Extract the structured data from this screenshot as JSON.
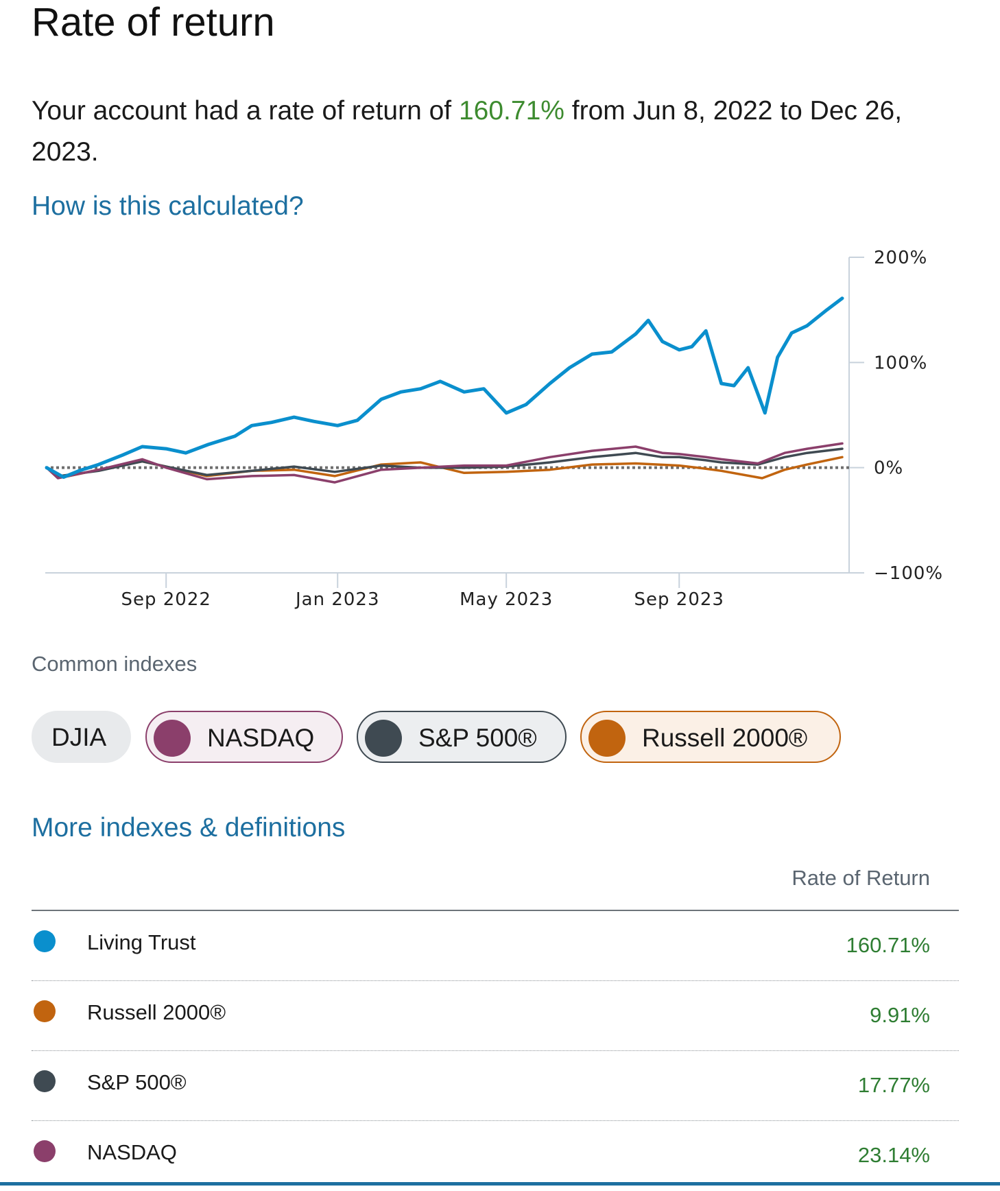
{
  "page": {
    "title": "Rate of return",
    "summary_prefix": "Your account had a rate of return of ",
    "summary_value": "160.71%",
    "summary_suffix": " from Jun 8, 2022 to Dec 26, 2023.",
    "how_link": "How is this calculated?"
  },
  "indexes": {
    "label": "Common indexes",
    "chips": [
      {
        "label": "DJIA",
        "selected": false,
        "color": null
      },
      {
        "label": "NASDAQ",
        "selected": true,
        "color": "#8b3f6b"
      },
      {
        "label": "S&P 500®",
        "selected": true,
        "color": "#3f4a52"
      },
      {
        "label": "Russell 2000®",
        "selected": true,
        "color": "#c1640f"
      }
    ],
    "more_link": "More indexes & definitions"
  },
  "table": {
    "header": "Rate of Return",
    "rows": [
      {
        "name": "Living Trust",
        "value": "160.71%",
        "color": "#0a8fcd"
      },
      {
        "name": "Russell 2000®",
        "value": "9.91%",
        "color": "#c1640f"
      },
      {
        "name": "S&P 500®",
        "value": "17.77%",
        "color": "#3f4a52"
      },
      {
        "name": "NASDAQ",
        "value": "23.14%",
        "color": "#8b3f6b"
      }
    ]
  },
  "chart_data": {
    "type": "line",
    "title": "",
    "xlabel": "",
    "ylabel": "",
    "x_start": "2022-06-08",
    "x_end": "2023-12-26",
    "x_ticks": [
      {
        "label": "Sep 2022",
        "date": "2022-09-01"
      },
      {
        "label": "Jan 2023",
        "date": "2023-01-01"
      },
      {
        "label": "May 2023",
        "date": "2023-05-01"
      },
      {
        "label": "Sep 2023",
        "date": "2023-09-01"
      }
    ],
    "y_ticks": [
      {
        "label": "200%",
        "value": 200
      },
      {
        "label": "100%",
        "value": 100
      },
      {
        "label": "0%",
        "value": 0
      },
      {
        "label": "−100%",
        "value": -100
      }
    ],
    "ylim": [
      -100,
      200
    ],
    "baseline": 0,
    "series": [
      {
        "name": "Living Trust",
        "color": "#0a8fcd",
        "points": [
          [
            "2022-06-08",
            0
          ],
          [
            "2022-06-20",
            -9
          ],
          [
            "2022-07-01",
            -3
          ],
          [
            "2022-07-15",
            3
          ],
          [
            "2022-08-01",
            12
          ],
          [
            "2022-08-15",
            20
          ],
          [
            "2022-09-01",
            18
          ],
          [
            "2022-09-15",
            14
          ],
          [
            "2022-10-01",
            22
          ],
          [
            "2022-10-20",
            30
          ],
          [
            "2022-11-01",
            40
          ],
          [
            "2022-11-15",
            43
          ],
          [
            "2022-12-01",
            48
          ],
          [
            "2022-12-15",
            44
          ],
          [
            "2023-01-01",
            40
          ],
          [
            "2023-01-15",
            45
          ],
          [
            "2023-02-01",
            65
          ],
          [
            "2023-02-15",
            72
          ],
          [
            "2023-03-01",
            75
          ],
          [
            "2023-03-15",
            82
          ],
          [
            "2023-04-01",
            72
          ],
          [
            "2023-04-15",
            75
          ],
          [
            "2023-05-01",
            52
          ],
          [
            "2023-05-15",
            60
          ],
          [
            "2023-06-01",
            80
          ],
          [
            "2023-06-15",
            95
          ],
          [
            "2023-07-01",
            108
          ],
          [
            "2023-07-15",
            110
          ],
          [
            "2023-08-01",
            127
          ],
          [
            "2023-08-10",
            140
          ],
          [
            "2023-08-20",
            120
          ],
          [
            "2023-09-01",
            112
          ],
          [
            "2023-09-10",
            115
          ],
          [
            "2023-09-20",
            130
          ],
          [
            "2023-10-01",
            80
          ],
          [
            "2023-10-10",
            78
          ],
          [
            "2023-10-20",
            95
          ],
          [
            "2023-11-01",
            52
          ],
          [
            "2023-11-10",
            105
          ],
          [
            "2023-11-20",
            128
          ],
          [
            "2023-12-01",
            135
          ],
          [
            "2023-12-15",
            150
          ],
          [
            "2023-12-26",
            161
          ]
        ]
      },
      {
        "name": "Russell 2000®",
        "color": "#c1640f",
        "points": [
          [
            "2022-06-08",
            0
          ],
          [
            "2022-06-20",
            -9
          ],
          [
            "2022-07-15",
            -2
          ],
          [
            "2022-08-15",
            6
          ],
          [
            "2022-09-01",
            1
          ],
          [
            "2022-09-30",
            -8
          ],
          [
            "2022-11-01",
            -3
          ],
          [
            "2022-12-01",
            -2
          ],
          [
            "2022-12-30",
            -8
          ],
          [
            "2023-02-01",
            3
          ],
          [
            "2023-03-01",
            5
          ],
          [
            "2023-04-01",
            -5
          ],
          [
            "2023-05-01",
            -4
          ],
          [
            "2023-06-01",
            -2
          ],
          [
            "2023-07-01",
            3
          ],
          [
            "2023-08-01",
            4
          ],
          [
            "2023-09-01",
            2
          ],
          [
            "2023-09-20",
            -1
          ],
          [
            "2023-10-01",
            -3
          ],
          [
            "2023-10-30",
            -10
          ],
          [
            "2023-11-15",
            -2
          ],
          [
            "2023-12-01",
            3
          ],
          [
            "2023-12-26",
            10
          ]
        ]
      },
      {
        "name": "S&P 500®",
        "color": "#3f4a52",
        "points": [
          [
            "2022-06-08",
            0
          ],
          [
            "2022-06-17",
            -8
          ],
          [
            "2022-07-15",
            -3
          ],
          [
            "2022-08-15",
            6
          ],
          [
            "2022-09-01",
            1
          ],
          [
            "2022-09-30",
            -7
          ],
          [
            "2022-11-01",
            -3
          ],
          [
            "2022-12-01",
            1
          ],
          [
            "2022-12-30",
            -4
          ],
          [
            "2023-02-01",
            2
          ],
          [
            "2023-03-01",
            0
          ],
          [
            "2023-04-01",
            0
          ],
          [
            "2023-05-01",
            1
          ],
          [
            "2023-06-01",
            5
          ],
          [
            "2023-07-01",
            10
          ],
          [
            "2023-08-01",
            14
          ],
          [
            "2023-08-20",
            10
          ],
          [
            "2023-09-01",
            10
          ],
          [
            "2023-09-20",
            7
          ],
          [
            "2023-10-01",
            5
          ],
          [
            "2023-10-27",
            3
          ],
          [
            "2023-11-15",
            10
          ],
          [
            "2023-12-01",
            14
          ],
          [
            "2023-12-26",
            18
          ]
        ]
      },
      {
        "name": "NASDAQ",
        "color": "#8b3f6b",
        "points": [
          [
            "2022-06-08",
            0
          ],
          [
            "2022-06-16",
            -10
          ],
          [
            "2022-07-15",
            -2
          ],
          [
            "2022-08-15",
            8
          ],
          [
            "2022-09-01",
            0
          ],
          [
            "2022-09-30",
            -11
          ],
          [
            "2022-11-01",
            -8
          ],
          [
            "2022-12-01",
            -7
          ],
          [
            "2022-12-30",
            -14
          ],
          [
            "2023-02-01",
            -2
          ],
          [
            "2023-03-01",
            0
          ],
          [
            "2023-04-01",
            2
          ],
          [
            "2023-05-01",
            2
          ],
          [
            "2023-06-01",
            10
          ],
          [
            "2023-07-01",
            16
          ],
          [
            "2023-08-01",
            20
          ],
          [
            "2023-08-20",
            14
          ],
          [
            "2023-09-01",
            13
          ],
          [
            "2023-09-20",
            10
          ],
          [
            "2023-10-01",
            8
          ],
          [
            "2023-10-27",
            4
          ],
          [
            "2023-11-15",
            14
          ],
          [
            "2023-12-01",
            18
          ],
          [
            "2023-12-26",
            23
          ]
        ]
      }
    ],
    "grid": false,
    "legend": "none"
  }
}
